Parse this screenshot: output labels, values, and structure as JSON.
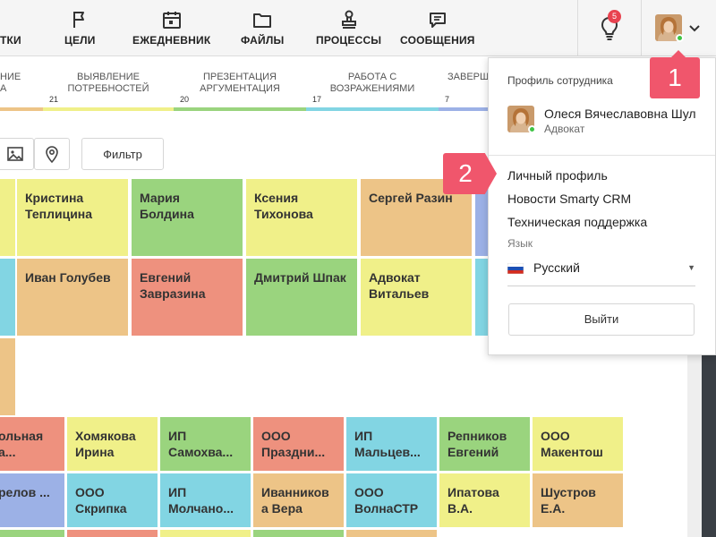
{
  "nav": {
    "items": [
      {
        "label": "ТКИ",
        "icon": "partial-icon"
      },
      {
        "label": "ЦЕЛИ",
        "icon": "flag-icon"
      },
      {
        "label": "ЕЖЕДНЕВНИК",
        "icon": "calendar-icon"
      },
      {
        "label": "ФАЙЛЫ",
        "icon": "folder-icon"
      },
      {
        "label": "ПРОЦЕССЫ",
        "icon": "stamp-icon"
      },
      {
        "label": "СООБЩЕНИЯ",
        "icon": "chat-icon"
      }
    ],
    "notifications_count": "5"
  },
  "stages": [
    {
      "name": "НИЕ\nА",
      "count": "",
      "color": "#edc487"
    },
    {
      "name": "ВЫЯВЛЕНИЕ\nПОТРЕБНОСТЕЙ",
      "count": "21",
      "color": "#f0f089"
    },
    {
      "name": "ПРЕЗЕНТАЦИЯ\nАРГУМЕНТАЦИЯ",
      "count": "20",
      "color": "#9ad47e"
    },
    {
      "name": "РАБОТА С\nВОЗРАЖЕНИЯМИ",
      "count": "17",
      "color": "#82d5e3"
    },
    {
      "name": "ЗАВЕРШ",
      "count": "7",
      "color": "#9cb1e6"
    }
  ],
  "toolbar": {
    "filter_label": "Фильтр"
  },
  "cards": {
    "row1": [
      "Кристина Теплицина",
      "Мария Болдина",
      "Ксения Тихонова",
      "Сергей Разин"
    ],
    "row2": [
      "Иван Голубев",
      "Евгений Завразина",
      "Дмитрий Шпак",
      "Адвокат Витальев"
    ],
    "row3": [
      "ольная а...",
      "Хомякова Ирина",
      "ИП Самохва...",
      "ООО Праздни...",
      "ИП Мальцев...",
      "Репников Евгений",
      "ООО Макентош"
    ],
    "row4": [
      "релов ...",
      "ООО Скрипка",
      "ИП Молчано...",
      "Иванников а Вера",
      "ООО ВолнаСТР",
      "Ипатова В.А.",
      "Шустров Е.А."
    ]
  },
  "profile_menu": {
    "heading": "Профиль сотрудника",
    "user_name": "Олеся Вячеславовна Шул",
    "user_role": "Адвокат",
    "links": [
      "Личный профиль",
      "Новости Smarty CRM",
      "Техническая поддержка"
    ],
    "language_label": "Язык",
    "language_value": "Русский",
    "logout_label": "Выйти"
  },
  "callouts": {
    "one": "1",
    "two": "2"
  },
  "colors": {
    "accent_callout": "#f0566c",
    "online": "#3ec445",
    "badge": "#e8424f"
  }
}
